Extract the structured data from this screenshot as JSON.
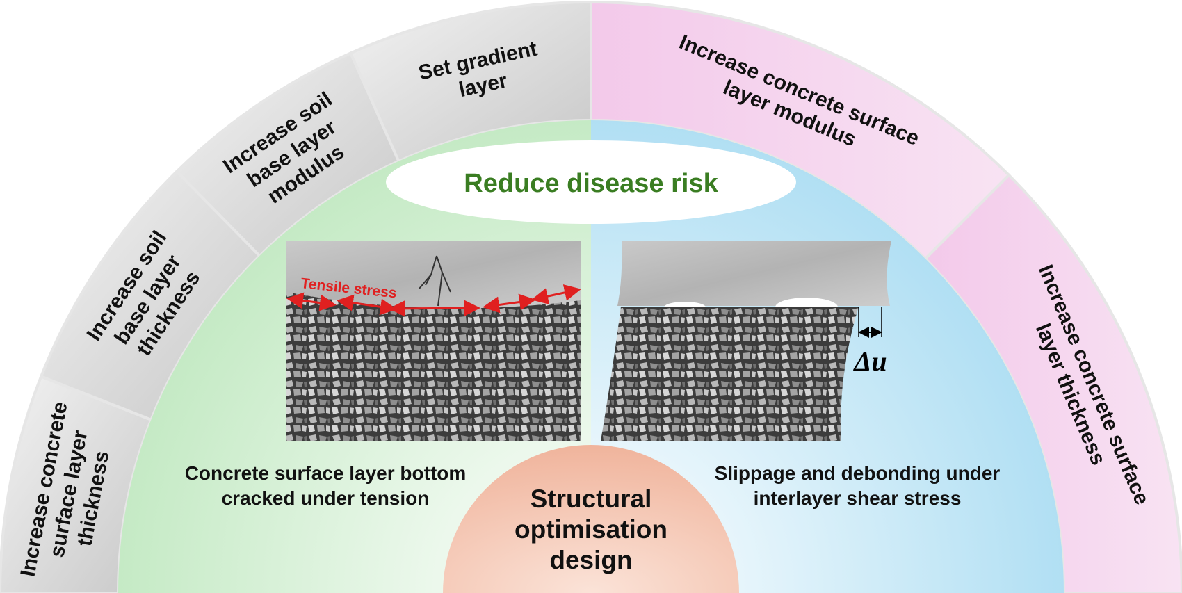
{
  "goal": "Reduce disease risk",
  "core": [
    "Structural",
    "optimisation",
    "design"
  ],
  "measures_left": [
    [
      "Increase concrete",
      "surface layer",
      "thickness"
    ],
    [
      "Increase soil",
      "base layer",
      "thickness"
    ],
    [
      "Increase soil",
      "base layer",
      "modulus"
    ],
    [
      "Set gradient",
      "layer"
    ]
  ],
  "measures_right": [
    [
      "Increase concrete surface",
      "layer modulus"
    ],
    [
      "Increase concrete surface",
      "layer thickness"
    ]
  ],
  "panels": [
    {
      "annotation": "Tensile stress",
      "caption": [
        "Concrete surface layer bottom",
        "cracked under tension"
      ]
    },
    {
      "annotation": "Δu",
      "caption": [
        "Slippage and debonding under",
        "interlayer shear stress"
      ]
    }
  ]
}
